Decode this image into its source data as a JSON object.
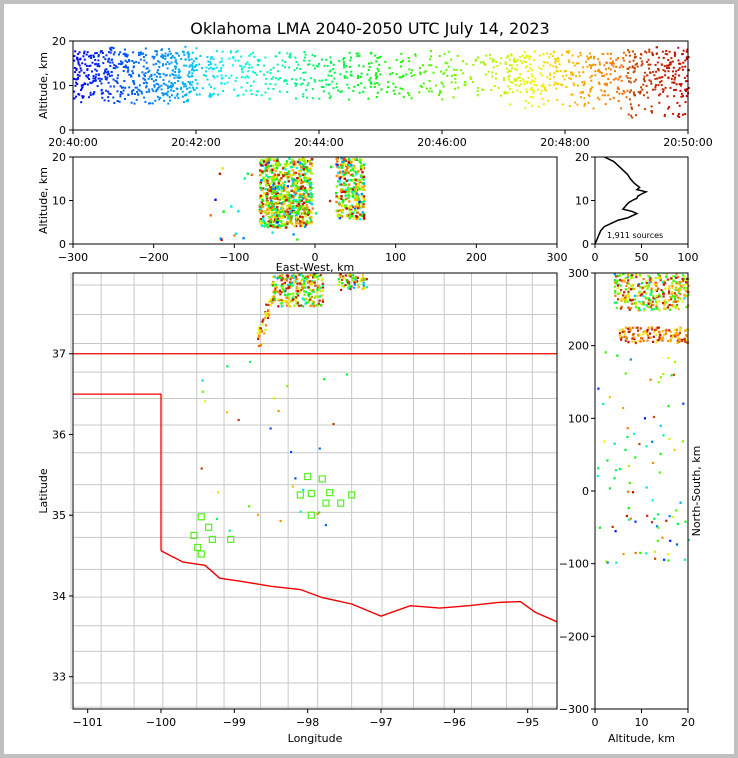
{
  "title": "Oklahoma LMA 2040-2050 UTC July 14, 2023",
  "chart_data": [
    {
      "panel": "altitude-time",
      "type": "scatter",
      "ylabel": "Altitude, km",
      "ylim": [
        0,
        20
      ],
      "yticks": [
        "0",
        "10",
        "20"
      ],
      "xlim_seconds": [
        0,
        600
      ],
      "xticks": [
        "20:40:00",
        "20:42:00",
        "20:44:00",
        "20:46:00",
        "20:48:00",
        "20:50:00"
      ],
      "color_scale": "time (blue to red)",
      "clusters": [
        {
          "t0": 0,
          "t1": 120,
          "alt": [
            6,
            19
          ],
          "n": 520
        },
        {
          "t0": 120,
          "t1": 270,
          "alt": [
            7,
            17
          ],
          "n": 260
        },
        {
          "t0": 270,
          "t1": 420,
          "alt": [
            7,
            17
          ],
          "n": 200
        },
        {
          "t0": 420,
          "t1": 540,
          "alt": [
            5,
            18
          ],
          "n": 330
        },
        {
          "t0": 540,
          "t1": 600,
          "alt": [
            3,
            19
          ],
          "n": 220
        }
      ]
    },
    {
      "panel": "altitude-east-west",
      "type": "scatter",
      "xlabel": "East-West, km",
      "ylabel": "Altitude, km",
      "xlim": [
        -300,
        300
      ],
      "ylim": [
        0,
        20
      ],
      "xticks": [
        "−300",
        "−200",
        "−100",
        "0",
        "100",
        "200",
        "300"
      ],
      "yticks": [
        "0",
        "10",
        "20"
      ],
      "clusters": [
        {
          "x": [
            -70,
            -5
          ],
          "alt": [
            4,
            20
          ],
          "n": 700
        },
        {
          "x": [
            25,
            60
          ],
          "alt": [
            6,
            20
          ],
          "n": 260
        }
      ]
    },
    {
      "panel": "altitude-histogram",
      "type": "line",
      "xlim": [
        0,
        100
      ],
      "ylim": [
        0,
        20
      ],
      "xticks": [
        "0",
        "50",
        "100"
      ],
      "yticks": [
        "0",
        "10",
        "20"
      ],
      "annotation": "1,911 sources",
      "profile": [
        [
          0,
          0
        ],
        [
          2,
          1
        ],
        [
          4,
          2
        ],
        [
          6,
          3
        ],
        [
          10,
          4
        ],
        [
          20,
          5
        ],
        [
          25,
          5.5
        ],
        [
          35,
          6
        ],
        [
          40,
          6.5
        ],
        [
          45,
          7
        ],
        [
          40,
          7.5
        ],
        [
          30,
          8
        ],
        [
          32,
          8.5
        ],
        [
          34,
          9
        ],
        [
          36,
          9.5
        ],
        [
          40,
          10
        ],
        [
          45,
          10.5
        ],
        [
          46,
          11
        ],
        [
          50,
          11.5
        ],
        [
          55,
          12
        ],
        [
          45,
          12.5
        ],
        [
          48,
          13
        ],
        [
          42,
          14
        ],
        [
          38,
          15
        ],
        [
          35,
          16
        ],
        [
          30,
          17
        ],
        [
          25,
          18
        ],
        [
          20,
          19
        ],
        [
          10,
          20
        ]
      ]
    },
    {
      "panel": "plan-view",
      "type": "scatter",
      "xlabel": "Longitude",
      "ylabel": "Latitude",
      "xlim": [
        -101.2,
        -94.6
      ],
      "ylim": [
        32.6,
        38.0
      ],
      "xticks": [
        "−101",
        "−100",
        "−99",
        "−98",
        "−97",
        "−96",
        "−95"
      ],
      "yticks": [
        "33",
        "34",
        "35",
        "36",
        "37"
      ],
      "stations": [
        [
          -99.45,
          34.98
        ],
        [
          -99.35,
          34.85
        ],
        [
          -99.55,
          34.75
        ],
        [
          -99.3,
          34.7
        ],
        [
          -99.05,
          34.7
        ],
        [
          -99.5,
          34.6
        ],
        [
          -99.45,
          34.52
        ],
        [
          -98.1,
          35.25
        ],
        [
          -98.0,
          35.48
        ],
        [
          -97.8,
          35.45
        ],
        [
          -97.95,
          35.27
        ],
        [
          -97.7,
          35.28
        ],
        [
          -97.75,
          35.15
        ],
        [
          -97.95,
          35.0
        ],
        [
          -97.55,
          35.15
        ],
        [
          -97.4,
          35.25
        ]
      ]
    },
    {
      "panel": "north-south-altitude",
      "type": "scatter",
      "xlabel": "Altitude, km",
      "ylabel": "North-South, km",
      "xlim": [
        0,
        20
      ],
      "ylim": [
        -300,
        300
      ],
      "xticks": [
        "0",
        "10",
        "20"
      ],
      "yticks": [
        "−300",
        "−200",
        "−100",
        "0",
        "100",
        "200",
        "300"
      ]
    }
  ]
}
